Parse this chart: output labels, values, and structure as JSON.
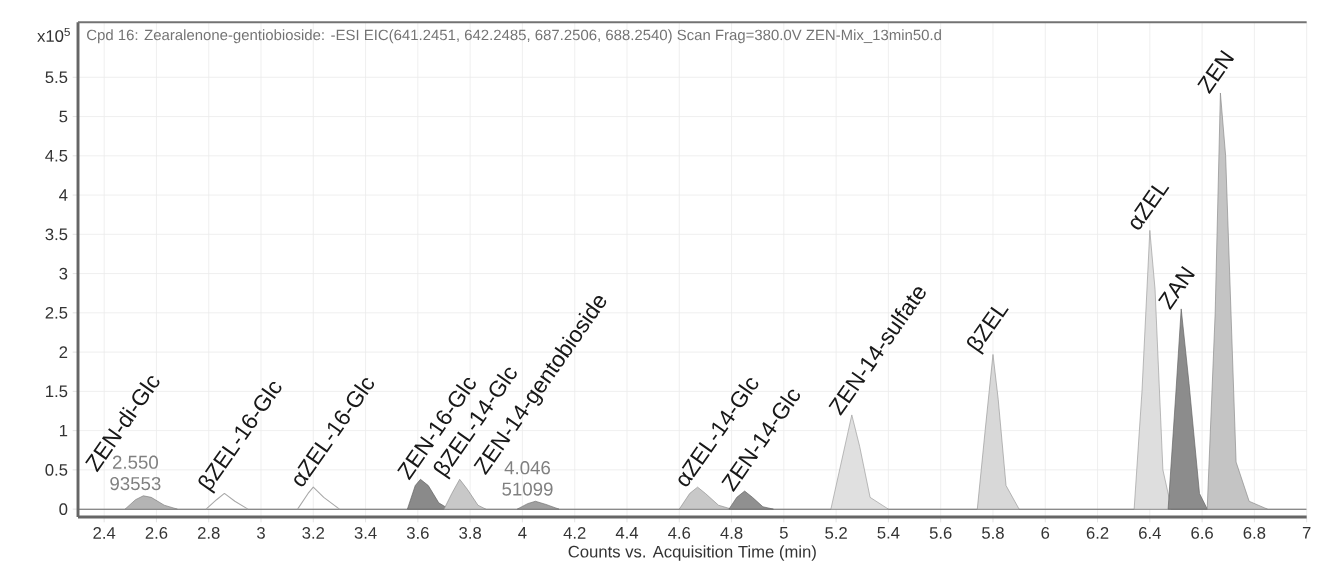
{
  "chart_data": {
    "type": "area",
    "title": "Cpd 16: Zearalenone-gentiobioside: -ESI EIC(641.2451, 642.2485, 687.2506, 688.2540) Scan Frag=380.0V ZEN-Mix_13min50.d",
    "xlabel": "Counts vs. Acquisition Time (min)",
    "ylabel": "x10$^{5}$",
    "xlim": [
      2.3,
      7.0
    ],
    "ylim": [
      -0.1,
      6.2
    ],
    "xticks": [
      2.4,
      2.6,
      2.8,
      3,
      3.2,
      3.4,
      3.6,
      3.8,
      4,
      4.2,
      4.4,
      4.6,
      4.8,
      5,
      5.2,
      5.4,
      5.6,
      5.8,
      6,
      6.2,
      6.4,
      6.6,
      6.8,
      7
    ],
    "yticks": [
      0,
      0.5,
      1,
      1.5,
      2,
      2.5,
      3,
      3.5,
      4,
      4.5,
      5,
      5.5
    ],
    "grid": true,
    "series": [
      {
        "type": "line",
        "color": "#666666",
        "x": [
          2.3,
          7.0
        ],
        "values": [
          0,
          0
        ]
      },
      {
        "color": "#b4b4b4",
        "x": [
          2.48,
          2.52,
          2.55,
          2.58,
          2.63,
          2.68
        ],
        "values": [
          0,
          0.12,
          0.17,
          0.15,
          0.05,
          0
        ]
      },
      {
        "type": "line",
        "color": "#a8a8a8",
        "x": [
          2.79,
          2.83,
          2.86,
          2.9,
          2.95
        ],
        "values": [
          0,
          0.12,
          0.2,
          0.1,
          0
        ]
      },
      {
        "type": "line",
        "color": "#a8a8a8",
        "x": [
          3.14,
          3.18,
          3.2,
          3.24,
          3.3
        ],
        "values": [
          0,
          0.2,
          0.28,
          0.15,
          0
        ]
      },
      {
        "color": "#8a8a8a",
        "x": [
          3.56,
          3.59,
          3.61,
          3.64,
          3.68,
          3.72
        ],
        "values": [
          0,
          0.3,
          0.38,
          0.3,
          0.08,
          0
        ]
      },
      {
        "color": "#c8c8c8",
        "x": [
          3.7,
          3.73,
          3.76,
          3.79,
          3.83,
          3.86
        ],
        "values": [
          0,
          0.2,
          0.38,
          0.25,
          0.05,
          0
        ]
      },
      {
        "color": "#a0a0a0",
        "x": [
          3.98,
          4.02,
          4.05,
          4.09,
          4.14
        ],
        "values": [
          0,
          0.07,
          0.1,
          0.06,
          0
        ]
      },
      {
        "color": "#c8c8c8",
        "x": [
          4.6,
          4.64,
          4.67,
          4.7,
          4.75,
          4.8
        ],
        "values": [
          0,
          0.2,
          0.28,
          0.2,
          0.05,
          0
        ]
      },
      {
        "color": "#909090",
        "x": [
          4.79,
          4.82,
          4.85,
          4.88,
          4.92,
          4.96
        ],
        "values": [
          0,
          0.15,
          0.23,
          0.15,
          0.03,
          0
        ]
      },
      {
        "color": "#e0e0e0",
        "x": [
          5.18,
          5.22,
          5.26,
          5.29,
          5.33,
          5.4
        ],
        "values": [
          0,
          0.6,
          1.2,
          0.8,
          0.15,
          0
        ]
      },
      {
        "color": "#d8d8d8",
        "x": [
          5.74,
          5.77,
          5.8,
          5.82,
          5.85,
          5.9
        ],
        "values": [
          0,
          1.0,
          1.97,
          1.4,
          0.3,
          0
        ]
      },
      {
        "color": "#dedede",
        "x": [
          6.34,
          6.37,
          6.4,
          6.42,
          6.45,
          6.48
        ],
        "values": [
          0,
          1.5,
          3.55,
          2.8,
          0.5,
          0.05
        ]
      },
      {
        "color": "#8c8c8c",
        "x": [
          6.47,
          6.5,
          6.52,
          6.55,
          6.59,
          6.62
        ],
        "values": [
          0,
          1.5,
          2.55,
          1.6,
          0.2,
          0
        ]
      },
      {
        "color": "#c4c4c4",
        "x": [
          6.62,
          6.65,
          6.67,
          6.69,
          6.73,
          6.78,
          6.85
        ],
        "values": [
          0.05,
          2.5,
          5.3,
          4.5,
          0.6,
          0.1,
          0
        ]
      }
    ],
    "annotations": [
      {
        "text": "93553",
        "x": 2.55,
        "y": 0.17
      },
      {
        "text": "2.550",
        "x": 2.55,
        "y": 0.17
      },
      {
        "text": "ZEN-di-Glc",
        "x": 2.55,
        "y": 0.17
      },
      {
        "text": "βZEL-16-Glc",
        "x": 2.86,
        "y": 0.2
      },
      {
        "text": "αZEL-16-Glc",
        "x": 3.2,
        "y": 0.28
      },
      {
        "text": "ZEN-16-Glc",
        "x": 3.61,
        "y": 0.38
      },
      {
        "text": "βZEL-14-Glc",
        "x": 3.76,
        "y": 0.38
      },
      {
        "text": "51099",
        "x": 4.05,
        "y": 0.1
      },
      {
        "text": "4.046",
        "x": 4.05,
        "y": 0.1
      },
      {
        "text": "ZEN-14-gentobioside",
        "x": 4.05,
        "y": 0.1
      },
      {
        "text": "αZEL-14-Glc",
        "x": 4.67,
        "y": 0.28
      },
      {
        "text": "ZEN-14-Glc",
        "x": 4.85,
        "y": 0.23
      },
      {
        "text": "ZEN-14-sulfate",
        "x": 5.26,
        "y": 1.2
      },
      {
        "text": "βZEL",
        "x": 5.8,
        "y": 1.97
      },
      {
        "text": "αZEL",
        "x": 6.4,
        "y": 3.55
      },
      {
        "text": "ZAN",
        "x": 6.52,
        "y": 2.55
      },
      {
        "text": "ZEN",
        "x": 6.67,
        "y": 5.3
      }
    ]
  }
}
